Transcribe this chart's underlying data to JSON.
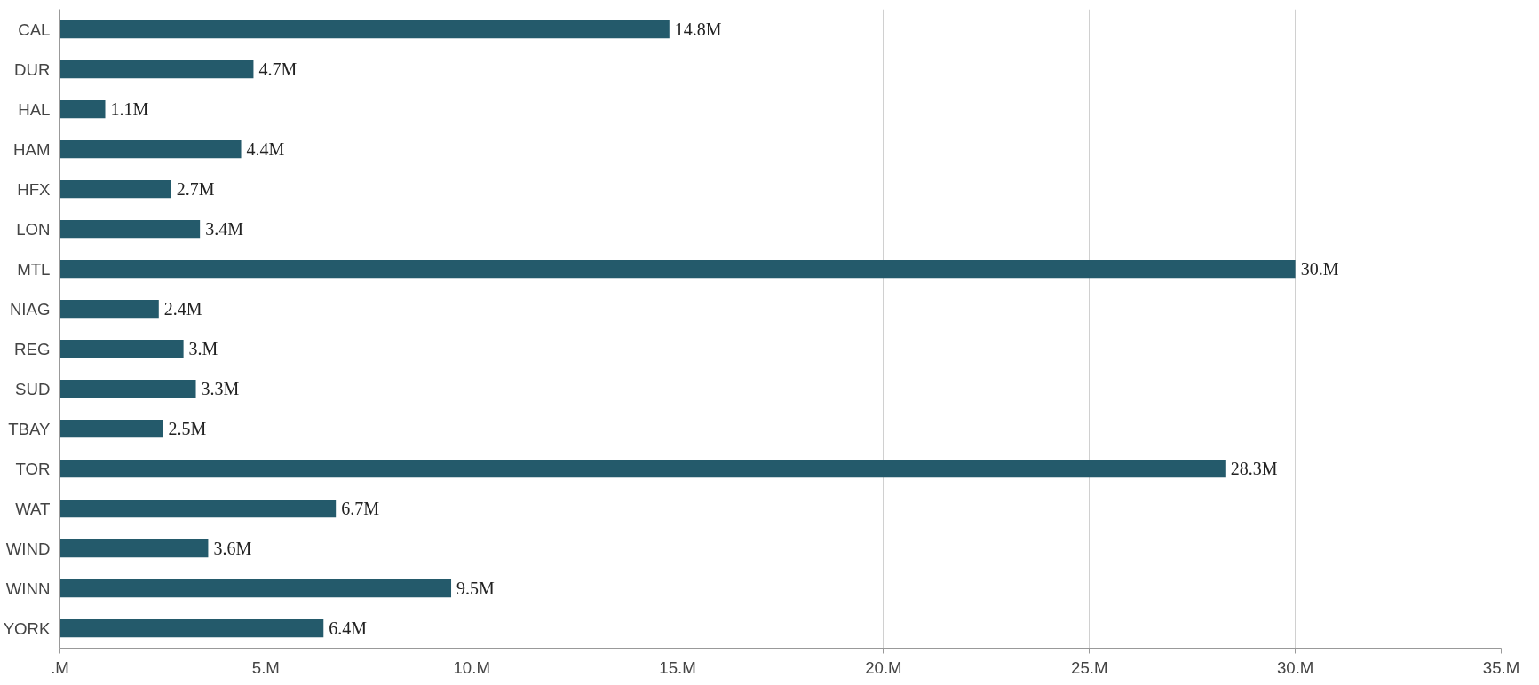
{
  "chart_data": {
    "type": "bar",
    "orientation": "horizontal",
    "categories": [
      "CAL",
      "DUR",
      "HAL",
      "HAM",
      "HFX",
      "LON",
      "MTL",
      "NIAG",
      "REG",
      "SUD",
      "TBAY",
      "TOR",
      "WAT",
      "WIND",
      "WINN",
      "YORK"
    ],
    "values": [
      14.8,
      4.7,
      1.1,
      4.4,
      2.7,
      3.4,
      30.0,
      2.4,
      3.0,
      3.3,
      2.5,
      28.3,
      6.7,
      3.6,
      9.5,
      6.4
    ],
    "value_labels": [
      "14.8M",
      "4.7M",
      "1.1M",
      "4.4M",
      "2.7M",
      "3.4M",
      "30.M",
      "2.4M",
      "3.M",
      "3.3M",
      "2.5M",
      "28.3M",
      "6.7M",
      "3.6M",
      "9.5M",
      "6.4M"
    ],
    "color": "#245a6b",
    "xlim": [
      0,
      35
    ],
    "xticks": [
      {
        "value": 0,
        "label": ".M"
      },
      {
        "value": 5,
        "label": "5.M"
      },
      {
        "value": 10,
        "label": "10.M"
      },
      {
        "value": 15,
        "label": "15.M"
      },
      {
        "value": 20,
        "label": "20.M"
      },
      {
        "value": 25,
        "label": "25.M"
      },
      {
        "value": 30,
        "label": "30.M"
      },
      {
        "value": 35,
        "label": "35.M"
      }
    ],
    "grid": "x"
  }
}
